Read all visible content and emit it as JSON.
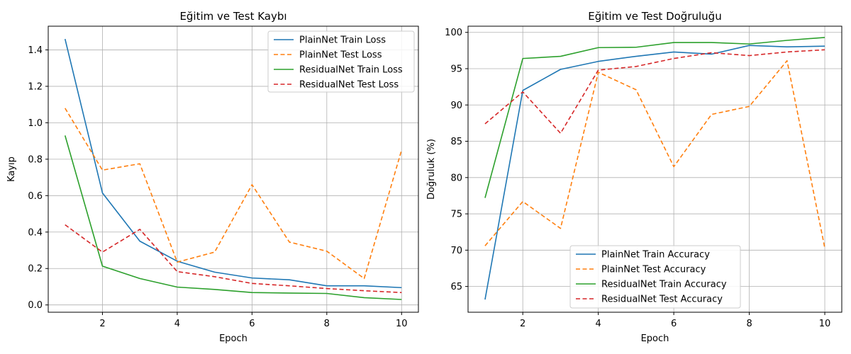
{
  "chart_data": [
    {
      "type": "line",
      "title": "Eğitim ve Test Kaybı",
      "xlabel": "Epoch",
      "ylabel": "Kayıp",
      "xlim": [
        0.55,
        10.45
      ],
      "ylim": [
        -0.04,
        1.53
      ],
      "xticks": [
        2,
        4,
        6,
        8,
        10
      ],
      "yticks": [
        0.0,
        0.2,
        0.4,
        0.6,
        0.8,
        1.0,
        1.2,
        1.4
      ],
      "ytick_labels": [
        "0.0",
        "0.2",
        "0.4",
        "0.6",
        "0.8",
        "1.0",
        "1.2",
        "1.4"
      ],
      "grid": true,
      "legend_position": "top-right",
      "x": [
        1,
        2,
        3,
        4,
        5,
        6,
        7,
        8,
        9,
        10
      ],
      "series": [
        {
          "name": "PlainNet Train Loss",
          "color": "#1f77b4",
          "dash": "solid",
          "values": [
            1.46,
            0.615,
            0.35,
            0.24,
            0.18,
            0.148,
            0.138,
            0.105,
            0.105,
            0.095
          ]
        },
        {
          "name": "PlainNet Test Loss",
          "color": "#ff7f0e",
          "dash": "dashed",
          "values": [
            1.08,
            0.74,
            0.775,
            0.235,
            0.29,
            0.66,
            0.345,
            0.295,
            0.145,
            0.85
          ]
        },
        {
          "name": "ResidualNet Train Loss",
          "color": "#2ca02c",
          "dash": "solid",
          "values": [
            0.93,
            0.213,
            0.145,
            0.098,
            0.085,
            0.068,
            0.065,
            0.063,
            0.04,
            0.03
          ]
        },
        {
          "name": "ResidualNet Test Loss",
          "color": "#d62728",
          "dash": "dashed",
          "values": [
            0.44,
            0.29,
            0.415,
            0.183,
            0.155,
            0.118,
            0.105,
            0.09,
            0.078,
            0.068
          ]
        }
      ]
    },
    {
      "type": "line",
      "title": "Eğitim ve Test Doğruluğu",
      "xlabel": "Epoch",
      "ylabel": "Doğruluk (%)",
      "xlim": [
        0.55,
        10.45
      ],
      "ylim": [
        61.45,
        100.85
      ],
      "xticks": [
        2,
        4,
        6,
        8,
        10
      ],
      "yticks": [
        65,
        70,
        75,
        80,
        85,
        90,
        95,
        100
      ],
      "ytick_labels": [
        "65",
        "70",
        "75",
        "80",
        "85",
        "90",
        "95",
        "100"
      ],
      "grid": true,
      "legend_position": "lower-center",
      "x": [
        1,
        2,
        3,
        4,
        5,
        6,
        7,
        8,
        9,
        10
      ],
      "series": [
        {
          "name": "PlainNet Train Accuracy",
          "color": "#1f77b4",
          "dash": "solid",
          "values": [
            63.2,
            92.0,
            94.9,
            96.0,
            96.7,
            97.3,
            97.0,
            98.2,
            98.0,
            98.1
          ]
        },
        {
          "name": "PlainNet Test Accuracy",
          "color": "#ff7f0e",
          "dash": "dashed",
          "values": [
            70.6,
            76.7,
            73.0,
            94.5,
            92.1,
            81.5,
            88.7,
            89.8,
            96.1,
            70.3
          ]
        },
        {
          "name": "ResidualNet Train Accuracy",
          "color": "#2ca02c",
          "dash": "solid",
          "values": [
            77.2,
            96.4,
            96.7,
            97.9,
            97.95,
            98.6,
            98.6,
            98.4,
            98.9,
            99.3
          ]
        },
        {
          "name": "ResidualNet Test Accuracy",
          "color": "#d62728",
          "dash": "dashed",
          "values": [
            87.4,
            91.8,
            86.1,
            94.8,
            95.3,
            96.4,
            97.2,
            96.8,
            97.3,
            97.6
          ]
        }
      ]
    }
  ]
}
